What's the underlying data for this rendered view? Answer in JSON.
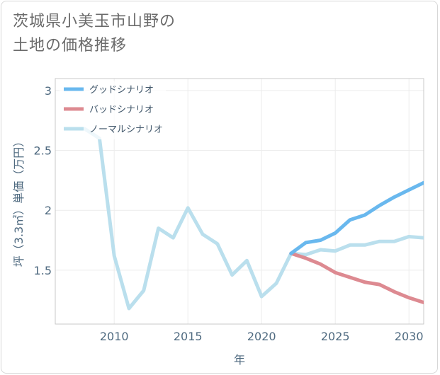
{
  "title_lines": [
    "茨城県小美玉市山野の",
    "土地の価格推移"
  ],
  "chart_data": {
    "type": "line",
    "title": "茨城県小美玉市山野の土地の価格推移",
    "xlabel": "年",
    "ylabel": "坪（3.3㎡）単価（万円）",
    "xlim": [
      2006,
      2031
    ],
    "ylim": [
      1.05,
      3.1
    ],
    "xticks": [
      2010,
      2015,
      2020,
      2025,
      2030
    ],
    "yticks": [
      1.5,
      2,
      2.5,
      3
    ],
    "xtick_labels": [
      "2010",
      "2015",
      "2020",
      "2025",
      "2030"
    ],
    "ytick_labels": [
      "1.5",
      "2",
      "2.5",
      "3"
    ],
    "grid": true,
    "legend_position": "top-left",
    "series": [
      {
        "name": "グッドシナリオ",
        "color": "#69b8ee",
        "x": [
          2022,
          2023,
          2024,
          2025,
          2026,
          2027,
          2028,
          2029,
          2030,
          2031
        ],
        "values": [
          1.64,
          1.73,
          1.75,
          1.81,
          1.92,
          1.96,
          2.04,
          2.11,
          2.17,
          2.23
        ]
      },
      {
        "name": "バッドシナリオ",
        "color": "#dd8a91",
        "x": [
          2022,
          2023,
          2024,
          2025,
          2026,
          2027,
          2028,
          2029,
          2030,
          2031
        ],
        "values": [
          1.64,
          1.6,
          1.55,
          1.48,
          1.44,
          1.4,
          1.38,
          1.32,
          1.27,
          1.23
        ]
      },
      {
        "name": "ノーマルシナリオ",
        "color": "#badfed",
        "x": [
          2008,
          2009,
          2010,
          2011,
          2012,
          2013,
          2014,
          2015,
          2016,
          2017,
          2018,
          2019,
          2020,
          2021,
          2022,
          2023,
          2024,
          2025,
          2026,
          2027,
          2028,
          2029,
          2030,
          2031
        ],
        "values": [
          2.68,
          2.6,
          1.62,
          1.18,
          1.33,
          1.85,
          1.77,
          2.02,
          1.8,
          1.72,
          1.46,
          1.58,
          1.28,
          1.39,
          1.64,
          1.63,
          1.67,
          1.66,
          1.71,
          1.71,
          1.74,
          1.74,
          1.78,
          1.77
        ]
      }
    ]
  }
}
